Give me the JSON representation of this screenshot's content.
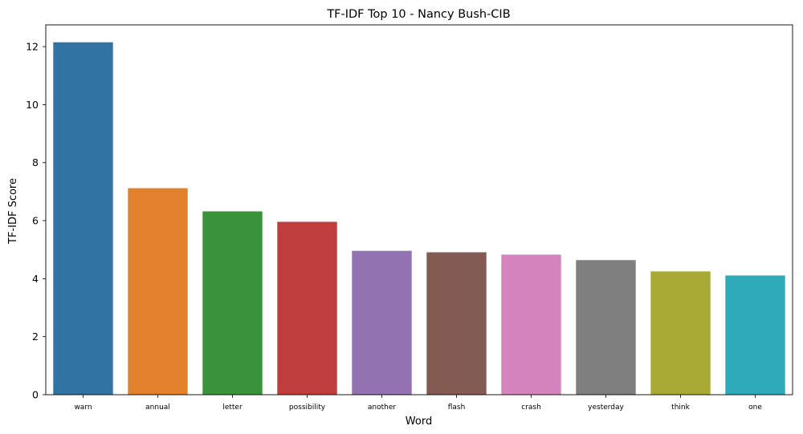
{
  "chart_data": {
    "type": "bar",
    "title": "TF-IDF Top 10 - Nancy Bush-CIB",
    "xlabel": "Word",
    "ylabel": "TF-IDF Score",
    "categories": [
      "warn",
      "annual",
      "letter",
      "possibility",
      "another",
      "flash",
      "crash",
      "yesterday",
      "think",
      "one"
    ],
    "values": [
      12.15,
      7.12,
      6.32,
      5.96,
      4.96,
      4.91,
      4.83,
      4.64,
      4.25,
      4.11
    ],
    "colors": [
      "#3274a1",
      "#e1812c",
      "#3a923a",
      "#c03d3e",
      "#9372b2",
      "#845b53",
      "#d684bd",
      "#7f7f7f",
      "#a9aa35",
      "#2eaab8"
    ],
    "ylim": [
      0,
      12.75
    ],
    "yticks": [
      0,
      2,
      4,
      6,
      8,
      10,
      12
    ],
    "grid": false,
    "legend": "none"
  }
}
